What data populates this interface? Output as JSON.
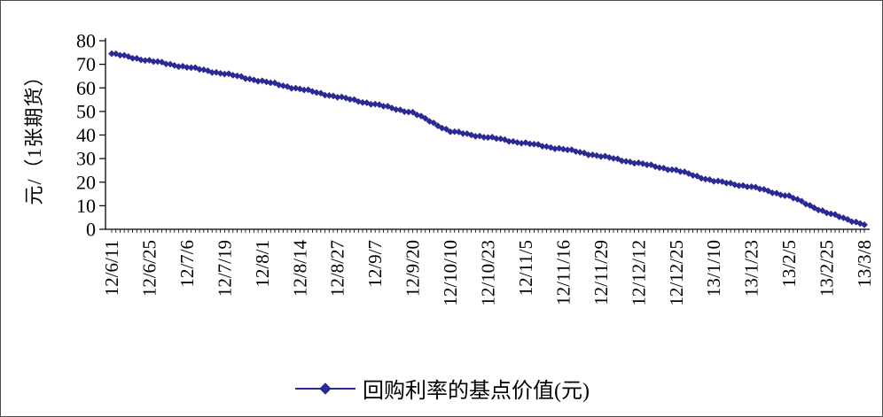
{
  "chart_data": {
    "type": "line",
    "title": "",
    "xlabel": "",
    "ylabel": "元/（1张期货）",
    "ylim": [
      0,
      80
    ],
    "yticks": [
      0,
      10,
      20,
      30,
      40,
      50,
      60,
      70,
      80
    ],
    "grid": false,
    "legend_position": "bottom",
    "points_per_tick": 9,
    "categories": [
      "12/6/11",
      "12/6/25",
      "12/7/6",
      "12/7/19",
      "12/8/1",
      "12/8/14",
      "12/8/27",
      "12/9/7",
      "12/9/20",
      "12/10/10",
      "12/10/23",
      "12/11/5",
      "12/11/16",
      "12/11/29",
      "12/12/12",
      "12/12/25",
      "13/1/10",
      "13/1/23",
      "13/2/5",
      "13/2/25",
      "13/3/8"
    ],
    "series": [
      {
        "name": "回购利率的基点价值(元)",
        "color": "#2a2a94",
        "marker": "diamond",
        "values": [
          74.5,
          71.5,
          68.8,
          66.0,
          62.8,
          59.5,
          56.2,
          53.0,
          49.5,
          41.5,
          39.0,
          36.5,
          34.0,
          31.0,
          28.0,
          25.0,
          20.5,
          18.0,
          14.0,
          7.0,
          2.0
        ]
      }
    ]
  },
  "axis_color": "#000000",
  "text_color": "#000000"
}
